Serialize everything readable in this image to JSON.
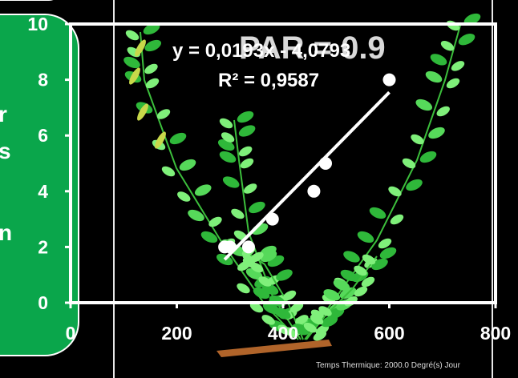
{
  "chart_data": {
    "type": "scatter",
    "title": "",
    "xlabel": "",
    "ylabel": "",
    "xlim": [
      0,
      800
    ],
    "ylim": [
      0,
      10
    ],
    "x_ticks": [
      "0",
      "200",
      "400",
      "600",
      "800"
    ],
    "y_ticks": [
      "0",
      "2",
      "4",
      "6",
      "8",
      "10"
    ],
    "grid": false,
    "series": [
      {
        "points": [
          {
            "x": 290,
            "y": 2
          },
          {
            "x": 300,
            "y": 2
          },
          {
            "x": 335,
            "y": 2
          },
          {
            "x": 380,
            "y": 3
          },
          {
            "x": 458,
            "y": 4
          },
          {
            "x": 480,
            "y": 5
          },
          {
            "x": 600,
            "y": 8
          }
        ],
        "color": "#ffffff"
      }
    ],
    "trendline": {
      "x_start": 290,
      "x_end": 600,
      "y_start": 1.55,
      "y_end": 7.55,
      "color": "#ffffff"
    },
    "annotations": {
      "equation": "y = 0,0193x - 4,0793",
      "r_squared": "R² = 0,9587",
      "overlay": "PAR = 0.9"
    }
  },
  "side_panel": {
    "color": "#0aa64b",
    "lines": [
      "r",
      "s",
      "n"
    ]
  },
  "footer": {
    "caption": "Temps Thermique: 2000.0 Degré(s) Jour"
  }
}
